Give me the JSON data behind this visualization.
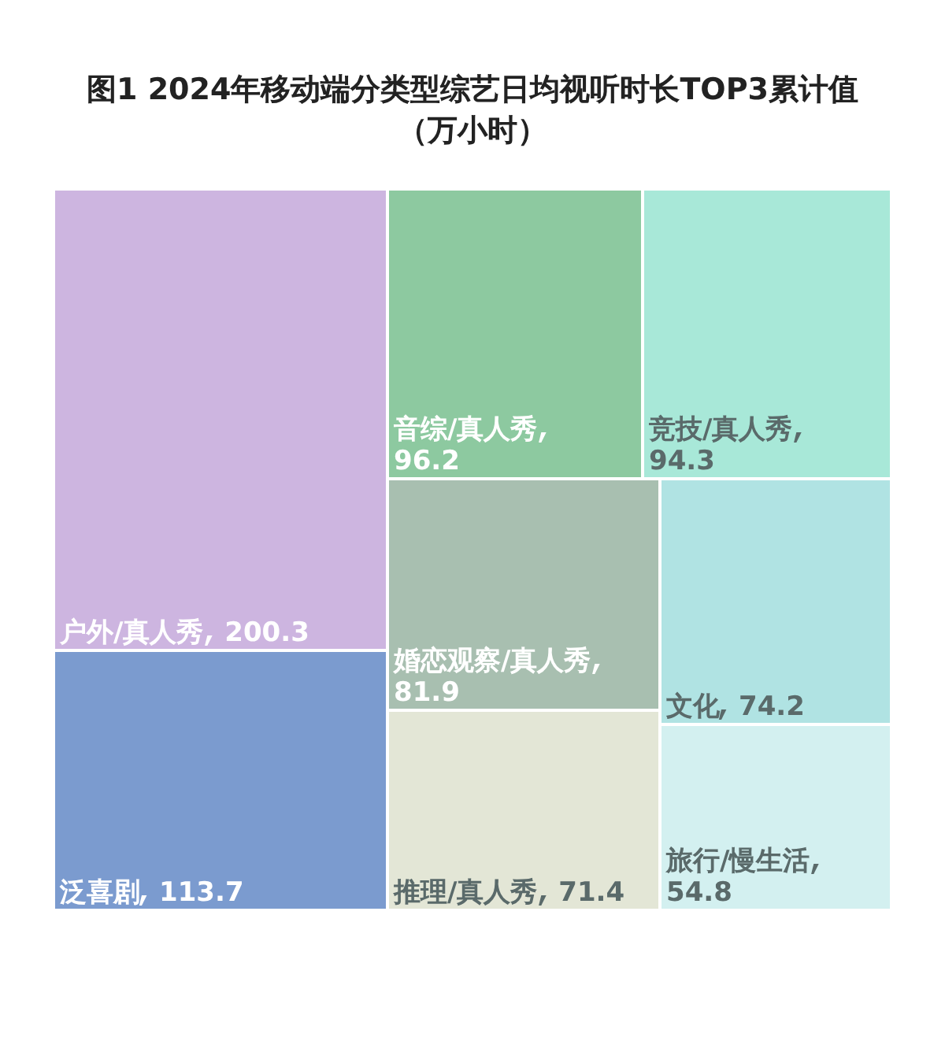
{
  "chart_data": {
    "type": "other",
    "title": "图1 2024年移动端分类型综艺日均视听时长TOP3累计值（万小时）",
    "categories": [
      "户外/真人秀",
      "泛喜剧",
      "音综/真人秀",
      "竞技/真人秀",
      "婚恋观察/真人秀",
      "推理/真人秀",
      "文化",
      "旅行/慢生活"
    ],
    "values": [
      200.3,
      113.7,
      96.2,
      94.3,
      81.9,
      71.4,
      74.2,
      54.8
    ],
    "colors": [
      "#cdb5e0",
      "#7b9bcf",
      "#8dc9a0",
      "#a8e8d8",
      "#a8bfb0",
      "#e3e6d6",
      "#b0e3e3",
      "#d3f0f0"
    ],
    "data_labels": true
  }
}
